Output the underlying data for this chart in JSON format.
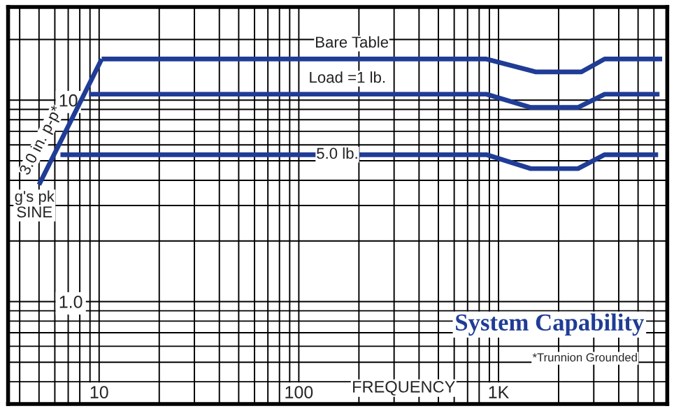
{
  "chart_data": {
    "type": "line",
    "title": "System Capability",
    "xlabel": "FREQUENCY",
    "ylabel": "g's pk\nSINE",
    "log": "xy",
    "grid": true,
    "legend": false,
    "marker": "none",
    "line_style": "solid",
    "xlim": [
      3.5,
      7000
    ],
    "ylim": [
      0.31,
      29
    ],
    "xticks": [
      {
        "value": 4,
        "label": null
      },
      {
        "value": 5,
        "label": null
      },
      {
        "value": 6,
        "label": null
      },
      {
        "value": 7,
        "label": null
      },
      {
        "value": 8,
        "label": null
      },
      {
        "value": 9,
        "label": null
      },
      10,
      {
        "value": 20,
        "label": null
      },
      {
        "value": 30,
        "label": null
      },
      {
        "value": 40,
        "label": null
      },
      {
        "value": 50,
        "label": null
      },
      {
        "value": 60,
        "label": null
      },
      {
        "value": 70,
        "label": null
      },
      {
        "value": 80,
        "label": null
      },
      {
        "value": 90,
        "label": null
      },
      100,
      {
        "value": 200,
        "label": null
      },
      {
        "value": 300,
        "label": null
      },
      {
        "value": 400,
        "label": null
      },
      {
        "value": 500,
        "label": null
      },
      {
        "value": 600,
        "label": null
      },
      {
        "value": 700,
        "label": null
      },
      {
        "value": 800,
        "label": null
      },
      {
        "value": 900,
        "label": null
      },
      {
        "value": 1000,
        "label": "1K"
      },
      {
        "value": 2000,
        "label": null
      },
      {
        "value": 3000,
        "label": null
      },
      {
        "value": 4000,
        "label": null
      },
      {
        "value": 5000,
        "label": null
      },
      {
        "value": 6000,
        "label": null
      },
      {
        "value": 7000,
        "label": null
      }
    ],
    "yticks": [
      {
        "value": 0.4,
        "label": null
      },
      {
        "value": 0.5,
        "label": null
      },
      {
        "value": 0.6,
        "label": null
      },
      {
        "value": 0.7,
        "label": null
      },
      {
        "value": 0.8,
        "label": null
      },
      {
        "value": 0.9,
        "label": null
      },
      {
        "value": 1,
        "label": "1.0"
      },
      {
        "value": 2,
        "label": null
      },
      {
        "value": 3,
        "label": null
      },
      {
        "value": 4,
        "label": null
      },
      {
        "value": 5,
        "label": null
      },
      {
        "value": 6,
        "label": null
      },
      {
        "value": 7,
        "label": null
      },
      {
        "value": 8,
        "label": null
      },
      {
        "value": 9,
        "label": null
      },
      10,
      {
        "value": 20,
        "label": null
      }
    ],
    "series": [
      {
        "name": "3.0 in. p-p*",
        "color": "#1f3c96",
        "x": [
          5,
          10.3
        ],
        "values": [
          3.8,
          16
        ]
      },
      {
        "name": "Bare Table",
        "color": "#1f3c96",
        "x": [
          10.3,
          870,
          1540,
          2600,
          3400,
          6600
        ],
        "values": [
          16,
          16,
          13.8,
          13.8,
          16,
          16
        ]
      },
      {
        "name": "Load =1 lb.",
        "color": "#1f3c96",
        "x": [
          8.9,
          870,
          1450,
          2500,
          3400,
          6400
        ],
        "values": [
          10.7,
          10.7,
          9.2,
          9.2,
          10.7,
          10.7
        ]
      },
      {
        "name": "5.0 lb.",
        "color": "#1f3c96",
        "x": [
          6.4,
          870,
          1450,
          2500,
          3400,
          6300
        ],
        "values": [
          5.36,
          5.36,
          4.57,
          4.57,
          5.36,
          5.36
        ]
      }
    ],
    "annotations": [
      "*Trunnion Grounded"
    ]
  }
}
